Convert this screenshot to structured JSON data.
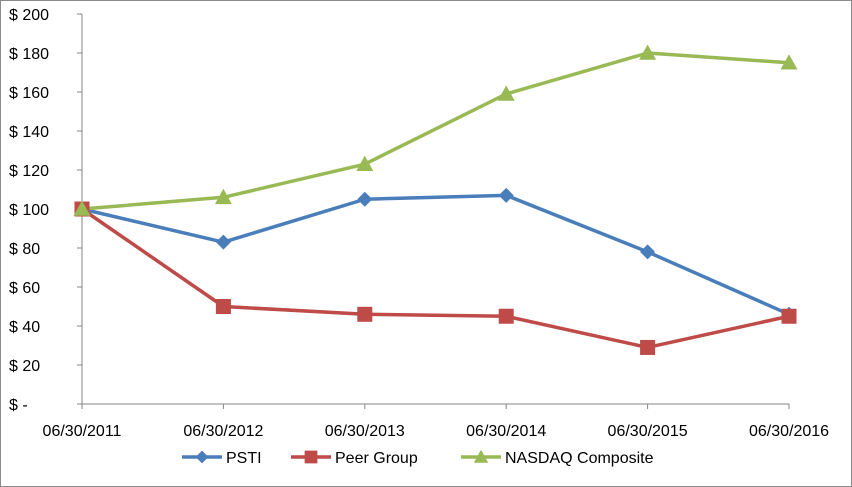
{
  "chart_data": {
    "type": "line",
    "categories": [
      "06/30/2011",
      "06/30/2012",
      "06/30/2013",
      "06/30/2014",
      "06/30/2015",
      "06/30/2016"
    ],
    "series": [
      {
        "name": "PSTI",
        "values": [
          100,
          83,
          105,
          107,
          78,
          46
        ],
        "color": "#4a7ebb",
        "marker": "diamond"
      },
      {
        "name": "Peer Group",
        "values": [
          100,
          50,
          46,
          45,
          29,
          45
        ],
        "color": "#be4b48",
        "marker": "square"
      },
      {
        "name": "NASDAQ Composite",
        "values": [
          100,
          106,
          123,
          159,
          180,
          175
        ],
        "color": "#98b954",
        "marker": "triangle"
      }
    ],
    "yticks": [
      0,
      20,
      40,
      60,
      80,
      100,
      120,
      140,
      160,
      180,
      200
    ],
    "ytick_labels": [
      "$ -",
      "$ 20",
      "$ 40",
      "$ 60",
      "$ 80",
      "$ 100",
      "$ 120",
      "$ 140",
      "$ 160",
      "$ 180",
      "$ 200"
    ],
    "ylim": [
      0,
      200
    ],
    "grid": false,
    "legend_position": "bottom",
    "title": "",
    "xlabel": "",
    "ylabel": ""
  }
}
